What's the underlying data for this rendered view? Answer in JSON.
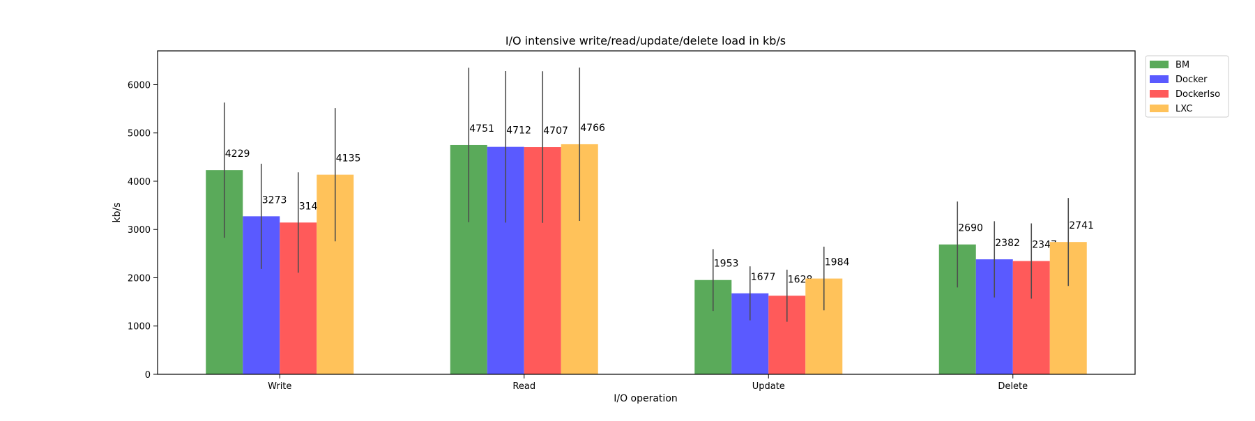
{
  "chart_data": {
    "type": "bar",
    "title": "I/O intensive write/read/update/delete load in kb/s",
    "xlabel": "I/O operation",
    "ylabel": "kb/s",
    "categories": [
      "Write",
      "Read",
      "Update",
      "Delete"
    ],
    "ylim": [
      0,
      6700
    ],
    "yticks": [
      0,
      1000,
      2000,
      3000,
      4000,
      5000,
      6000
    ],
    "grid": false,
    "legend_position": "outside-top-right",
    "series": [
      {
        "name": "BM",
        "color": "#5aaa5a",
        "values": [
          4229,
          4751,
          1953,
          2690
        ],
        "error": [
          1400,
          1600,
          640,
          890
        ],
        "labels": [
          "4229",
          "4751",
          "1953",
          "2690"
        ]
      },
      {
        "name": "Docker",
        "color": "#5a5aff",
        "values": [
          3273,
          4712,
          1677,
          2382
        ],
        "error": [
          1090,
          1570,
          560,
          790
        ],
        "labels": [
          "3273",
          "4712",
          "1677",
          "2382"
        ]
      },
      {
        "name": "DockerIso",
        "color": "#ff5a5a",
        "values": [
          3144,
          4707,
          1628,
          2347
        ],
        "error": [
          1040,
          1570,
          540,
          780
        ],
        "labels": [
          "3144",
          "4707",
          "1628",
          "2347"
        ]
      },
      {
        "name": "LXC",
        "color": "#ffc25a",
        "values": [
          4135,
          4766,
          1984,
          2741
        ],
        "error": [
          1380,
          1590,
          660,
          910
        ],
        "labels": [
          "4135",
          "4766",
          "1984",
          "2741"
        ]
      }
    ]
  }
}
